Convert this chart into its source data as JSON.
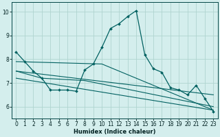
{
  "xlabel": "Humidex (Indice chaleur)",
  "bg_color": "#d4eeed",
  "grid_color": "#b0d4d0",
  "line_color": "#006060",
  "xlim": [
    -0.5,
    23.5
  ],
  "ylim": [
    5.5,
    10.4
  ],
  "yticks": [
    6,
    7,
    8,
    9,
    10
  ],
  "xticks": [
    0,
    1,
    2,
    3,
    4,
    5,
    6,
    7,
    8,
    9,
    10,
    11,
    12,
    13,
    14,
    15,
    16,
    17,
    18,
    19,
    20,
    21,
    22,
    23
  ],
  "main_line": {
    "x": [
      0,
      1,
      2,
      3,
      4,
      5,
      6,
      7,
      8,
      9,
      10,
      11,
      12,
      13,
      14,
      15,
      16,
      17,
      18,
      19,
      20,
      21,
      22,
      23
    ],
    "y": [
      8.3,
      7.9,
      7.5,
      7.2,
      6.7,
      6.7,
      6.7,
      6.65,
      7.55,
      7.8,
      8.5,
      9.3,
      9.5,
      9.8,
      10.05,
      8.2,
      7.6,
      7.45,
      6.8,
      6.7,
      6.5,
      6.9,
      6.35,
      5.8
    ]
  },
  "trend_lines": [
    {
      "x": [
        0,
        10,
        23
      ],
      "y": [
        7.9,
        7.8,
        5.85
      ]
    },
    {
      "x": [
        0,
        3,
        8,
        23
      ],
      "y": [
        7.5,
        7.2,
        7.1,
        6.0
      ]
    },
    {
      "x": [
        0,
        23
      ],
      "y": [
        7.5,
        6.5
      ]
    },
    {
      "x": [
        0,
        23
      ],
      "y": [
        7.2,
        5.85
      ]
    }
  ]
}
